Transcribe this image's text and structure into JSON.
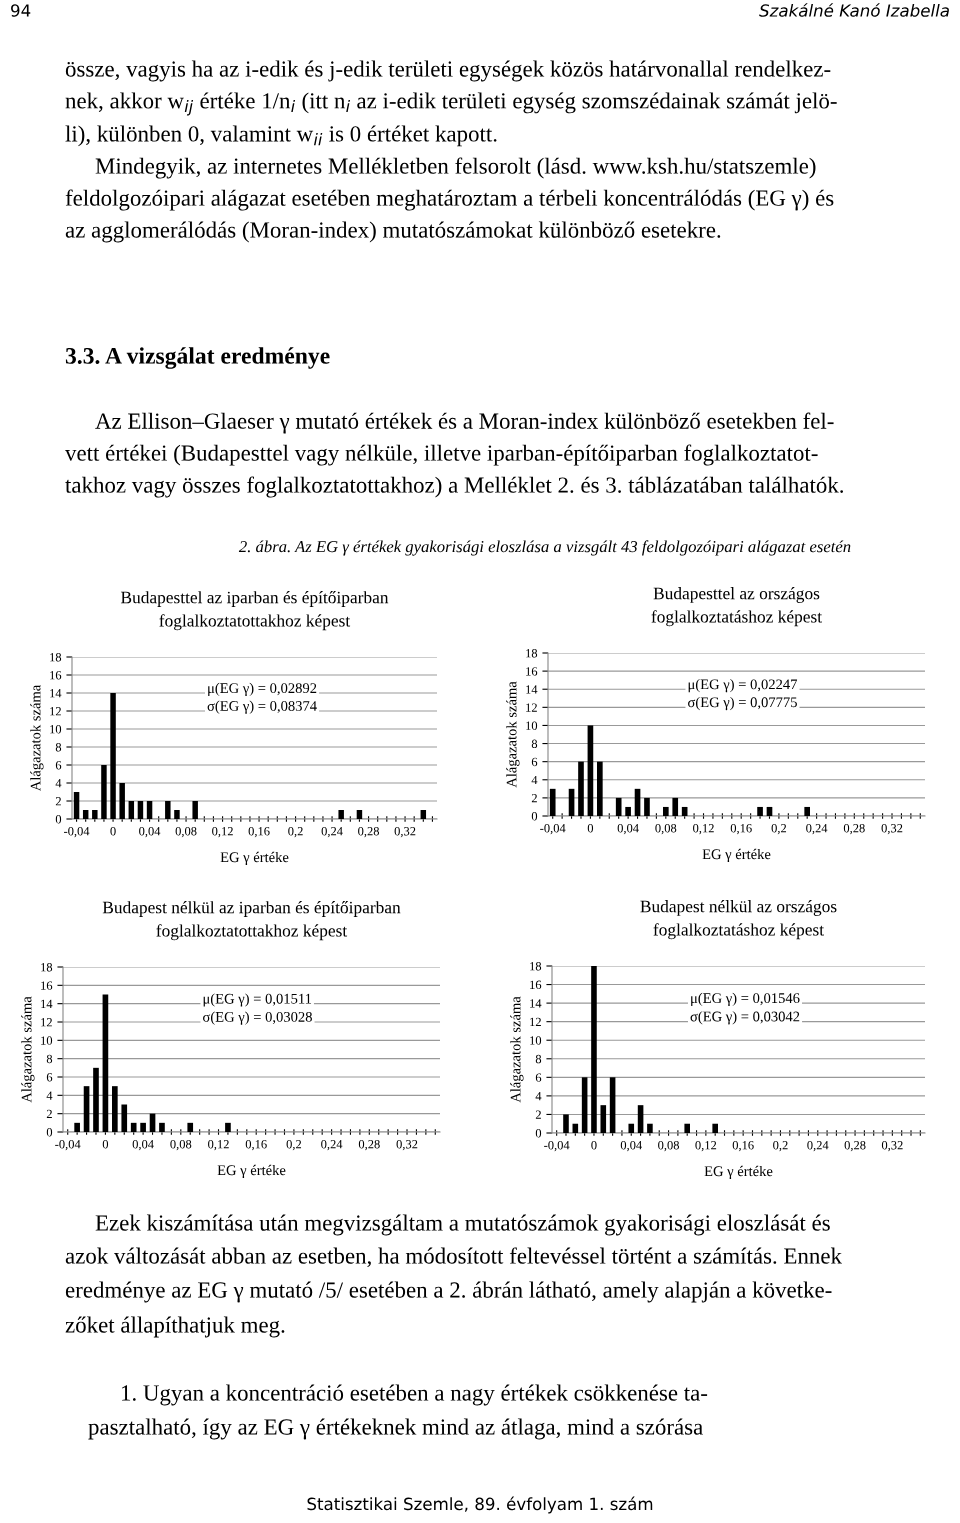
{
  "chart_data": [
    {
      "type": "other",
      "annotations": [
        "94",
        "Szakálné Kanó Izabella",
        "össze, vagyis ha az i-edik és j-edik területi egységek közös határvonallal rendelkez-",
        "nek, akkor w$_{ij}$ értéke 1/n$_{i}$ (itt n$_{i}$ az i-edik területi egység szomszédainak számát jelö-",
        "li), különben 0, valamint w$_{ii}$ is 0 értéket kapott.",
        "Mindegyik, az internetes Mellékletben felsorolt (lásd. www.ksh.hu/statszemle)",
        "feldolgozóipari alágazat esetében meghatároztam a térbeli koncentrálódás (EG γ) és",
        "az agglomerálódás (Moran-index) mutatószámokat különböző esetekre.",
        "3.3. A vizsgálat eredménye",
        "Az Ellison–Glaeser γ mutató értékek és a Moran-index különböző esetekben fel-",
        "vett értékei (Budapesttel vagy nélküle, illetve iparban-építőiparban foglalkoztatot-",
        "takhoz vagy összes foglalkoztatottakhoz) a Melléklet 2. és 3. táblázatában találhatók.",
        "2. ábra. Az EG γ értékek gyakorisági eloszlása a vizsgált 43 feldolgozóipari alágazat esetén"
      ]
    },
    {
      "type": "bar",
      "title": "Budapesttel az iparban és építőiparban\nfoglalkoztatottakhoz képest",
      "xlabel": "EG γ értéke",
      "ylabel": "Alágazatok száma",
      "annotations": [
        "μ(EG γ) = 0,02892",
        "σ(EG γ) = 0,08374"
      ],
      "categories": [
        "-0,04",
        null,
        null,
        null,
        "0",
        null,
        null,
        null,
        "0,04",
        null,
        null,
        null,
        "0,08",
        null,
        null,
        null,
        "0,12",
        null,
        null,
        null,
        "0,16",
        null,
        null,
        null,
        "0,2",
        null,
        null,
        null,
        "0,24",
        null,
        null,
        null,
        "0,28",
        null,
        null,
        null,
        "0,32",
        null,
        null,
        null
      ],
      "color": "#000000",
      "values": [
        3,
        1,
        1,
        6,
        14,
        4,
        2,
        2,
        2,
        0,
        2,
        1,
        0,
        2,
        0,
        0,
        0,
        0,
        0,
        0,
        0,
        0,
        0,
        0,
        0,
        0,
        0,
        0,
        0,
        1,
        0,
        1,
        0,
        0,
        0,
        0,
        0,
        0,
        1,
        0
      ],
      "ylim": [
        0,
        18
      ],
      "yticks": [
        0,
        2,
        4,
        6,
        8,
        10,
        12,
        14,
        16,
        18
      ],
      "grid": "y"
    },
    {
      "type": "bar",
      "title": "Budapesttel az országos\nfoglalkoztatáshoz képest",
      "xlabel": "EG γ értéke",
      "ylabel": "Alágazatok száma",
      "annotations": [
        "μ(EG γ) = 0,02247",
        "σ(EG γ) = 0,07775"
      ],
      "categories": [
        "-0,04",
        null,
        null,
        null,
        "0",
        null,
        null,
        null,
        "0,04",
        null,
        null,
        null,
        "0,08",
        null,
        null,
        null,
        "0,12",
        null,
        null,
        null,
        "0,16",
        null,
        null,
        null,
        "0,2",
        null,
        null,
        null,
        "0,24",
        null,
        null,
        null,
        "0,28",
        null,
        null,
        null,
        "0,32",
        null,
        null,
        null
      ],
      "color": "#000000",
      "values": [
        3,
        0,
        3,
        6,
        10,
        6,
        0,
        2,
        1,
        3,
        2,
        0,
        1,
        2,
        1,
        0,
        0,
        0,
        0,
        0,
        0,
        0,
        1,
        1,
        0,
        0,
        0,
        1,
        0,
        0,
        0,
        0,
        0,
        0,
        0,
        0,
        0,
        0,
        0,
        0
      ],
      "ylim": [
        0,
        18
      ],
      "yticks": [
        0,
        2,
        4,
        6,
        8,
        10,
        12,
        14,
        16,
        18
      ],
      "grid": "y"
    },
    {
      "type": "bar",
      "title": "Budapest nélkül az iparban és építőiparban\nfoglalkoztatottakhoz képest",
      "xlabel": "EG γ értéke",
      "ylabel": "Alágazatok száma",
      "annotations": [
        "μ(EG γ) = 0,01511",
        "σ(EG γ) = 0,03028"
      ],
      "categories": [
        "-0,04",
        null,
        null,
        null,
        "0",
        null,
        null,
        null,
        "0,04",
        null,
        null,
        null,
        "0,08",
        null,
        null,
        null,
        "0,12",
        null,
        null,
        null,
        "0,16",
        null,
        null,
        null,
        "0,2",
        null,
        null,
        null,
        "0,24",
        null,
        null,
        null,
        "0,28",
        null,
        null,
        null,
        "0,32",
        null,
        null,
        null
      ],
      "color": "#000000",
      "values": [
        0,
        1,
        5,
        7,
        15,
        5,
        3,
        1,
        1,
        2,
        1,
        0,
        0,
        1,
        0,
        0,
        0,
        1,
        0,
        0,
        0,
        0,
        0,
        0,
        0,
        0,
        0,
        0,
        0,
        0,
        0,
        0,
        0,
        0,
        0,
        0,
        0,
        0,
        0,
        0
      ],
      "ylim": [
        0,
        18
      ],
      "yticks": [
        0,
        2,
        4,
        6,
        8,
        10,
        12,
        14,
        16,
        18
      ],
      "grid": "y"
    },
    {
      "type": "bar",
      "title": "Budapest nélkül az országos\nfoglalkoztatáshoz képest",
      "xlabel": "EG γ értéke",
      "ylabel": "Alágazatok száma",
      "annotations": [
        "μ(EG γ) = 0,01546",
        "σ(EG γ) = 0,03042"
      ],
      "categories": [
        "-0,04",
        null,
        null,
        null,
        "0",
        null,
        null,
        null,
        "0,04",
        null,
        null,
        null,
        "0,08",
        null,
        null,
        null,
        "0,12",
        null,
        null,
        null,
        "0,16",
        null,
        null,
        null,
        "0,2",
        null,
        null,
        null,
        "0,24",
        null,
        null,
        null,
        "0,28",
        null,
        null,
        null,
        "0,32",
        null,
        null,
        null
      ],
      "color": "#000000",
      "values": [
        0,
        2,
        1,
        6,
        18,
        3,
        6,
        0,
        1,
        3,
        1,
        0,
        0,
        0,
        1,
        0,
        0,
        1,
        0,
        0,
        0,
        0,
        0,
        0,
        0,
        0,
        0,
        0,
        0,
        0,
        0,
        0,
        0,
        0,
        0,
        0,
        0,
        0,
        0,
        0
      ],
      "ylim": [
        0,
        18
      ],
      "yticks": [
        0,
        2,
        4,
        6,
        8,
        10,
        12,
        14,
        16,
        18
      ],
      "grid": "y"
    },
    {
      "type": "other",
      "annotations": [
        "Ezek kiszámítása után megvizsgáltam a mutatószámok gyakorisági eloszlását és",
        "azok változását abban az esetben, ha módosított feltevéssel történt a számítás. Ennek",
        "eredménye az EG γ mutató /5/ esetében a 2. ábrán látható, amely alapján a követke-",
        "zőket állapíthatjuk meg.",
        "1. Ugyan a koncentráció esetében a nagy értékek csökkenése ta-",
        "pasztalható, így az EG γ értékeknek mind az átlaga, mind a szórása",
        "Statisztikai Szemle, 89. évfolyam 1. szám"
      ]
    }
  ]
}
